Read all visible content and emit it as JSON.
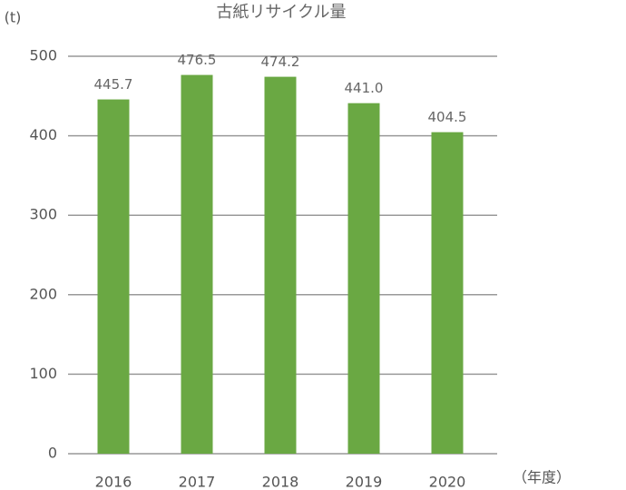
{
  "chart_data": {
    "type": "bar",
    "title": "古紙リサイクル量",
    "y_label": "(t)",
    "x_label": "（年度）",
    "categories": [
      "2016",
      "2017",
      "2018",
      "2019",
      "2020"
    ],
    "values": [
      445.7,
      476.5,
      474.2,
      441.0,
      404.5
    ],
    "value_labels": [
      "445.7",
      "476.5",
      "474.2",
      "441.0",
      "404.5"
    ],
    "color": "#6aa843",
    "ylim": [
      0,
      500
    ],
    "yticks": [
      0,
      100,
      200,
      300,
      400,
      500
    ],
    "grid": true
  }
}
